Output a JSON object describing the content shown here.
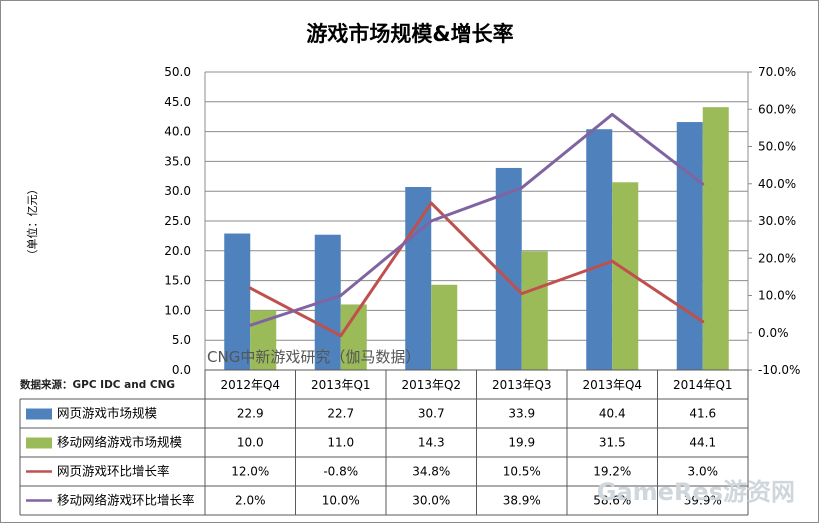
{
  "chart_data": {
    "type": "bar",
    "title": "游戏市场规模&增长率",
    "ylabel": "（单位：亿元）",
    "categories": [
      "2012年Q4",
      "2013年Q1",
      "2013年Q2",
      "2013年Q3",
      "2013年Q4",
      "2014年Q1"
    ],
    "ylim": [
      0,
      50
    ],
    "y_ticks": [
      "50.0",
      "45.0",
      "40.0",
      "35.0",
      "30.0",
      "25.0",
      "20.0",
      "15.0",
      "10.0",
      "5.0",
      "0.0"
    ],
    "y2lim": [
      -10,
      70
    ],
    "y2_ticks": [
      "70.0%",
      "60.0%",
      "50.0%",
      "40.0%",
      "30.0%",
      "20.0%",
      "10.0%",
      "0.0%",
      "-10.0%"
    ],
    "grid": true,
    "series": [
      {
        "name": "网页游戏市场规模",
        "kind": "bar",
        "axis": "left",
        "color": "#4f81bd",
        "values": [
          22.9,
          22.7,
          30.7,
          33.9,
          40.4,
          41.6
        ],
        "labels": [
          "22.9",
          "22.7",
          "30.7",
          "33.9",
          "40.4",
          "41.6"
        ]
      },
      {
        "name": "移动网络游戏市场规模",
        "kind": "bar",
        "axis": "left",
        "color": "#9bbb59",
        "values": [
          10.0,
          11.0,
          14.3,
          19.9,
          31.5,
          44.1
        ],
        "labels": [
          "10.0",
          "11.0",
          "14.3",
          "19.9",
          "31.5",
          "44.1"
        ]
      },
      {
        "name": "网页游戏环比增长率",
        "kind": "line",
        "axis": "right",
        "color": "#c0504d",
        "values": [
          12.0,
          -0.8,
          34.8,
          10.5,
          19.2,
          3.0
        ],
        "labels": [
          "12.0%",
          "-0.8%",
          "34.8%",
          "10.5%",
          "19.2%",
          "3.0%"
        ]
      },
      {
        "name": "移动网络游戏环比增长率",
        "kind": "line",
        "axis": "right",
        "color": "#8064a2",
        "values": [
          2.0,
          10.0,
          30.0,
          38.9,
          58.6,
          39.9
        ],
        "labels": [
          "2.0%",
          "10.0%",
          "30.0%",
          "38.9%",
          "58.6%",
          "39.9%"
        ]
      }
    ],
    "annotations": {
      "watermark": "CNG中新游戏研究（伽马数据）",
      "source": "数据来源：GPC IDC and CNG",
      "corner_watermark": "GameRes游资网"
    }
  }
}
